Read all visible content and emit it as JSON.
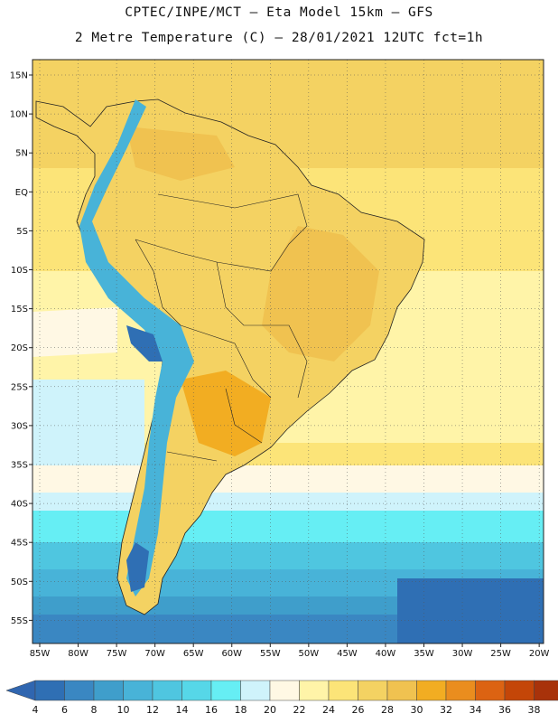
{
  "header": {
    "title_line1": "CPTEC/INPE/MCT –  Eta Model 15km – GFS",
    "title_line2": "2 Metre Temperature (C) – 28/01/2021 12UTC fct=1h"
  },
  "axes": {
    "lat_labels": [
      "15N",
      "10N",
      "5N",
      "EQ",
      "5S",
      "10S",
      "15S",
      "20S",
      "25S",
      "30S",
      "35S",
      "40S",
      "45S",
      "50S",
      "55S"
    ],
    "lon_labels": [
      "85W",
      "80W",
      "75W",
      "70W",
      "65W",
      "60W",
      "55W",
      "50W",
      "45W",
      "40W",
      "35W",
      "30W",
      "25W",
      "20W"
    ],
    "grid": true
  },
  "colorbar": {
    "labels": [
      "4",
      "6",
      "8",
      "10",
      "12",
      "14",
      "16",
      "18",
      "20",
      "22",
      "24",
      "26",
      "28",
      "30",
      "32",
      "34",
      "36",
      "38"
    ],
    "colors": [
      "#2f6fb4",
      "#3a87c2",
      "#3f9ecb",
      "#48b3d8",
      "#4fc6e0",
      "#56d7e8",
      "#66eef4",
      "#cff3fb",
      "#fff8e4",
      "#fff4a8",
      "#fce478",
      "#f4d262",
      "#f0c250",
      "#f2ad22",
      "#ea8d1e",
      "#dc6312",
      "#c44608",
      "#a8320a"
    ],
    "left_arrow_color": "#3066b0",
    "right_arrow_color": "#a8320a"
  },
  "colors": {
    "ocean_tropical": "#fce478",
    "ocean_subtropical": "#fff4a8",
    "ocean_mid": "#fff8e4",
    "ocean_cold": "#66eef4",
    "ocean_polar": "#3a87c2",
    "land_warm": "#f4d262",
    "land_hot": "#f0c250",
    "andes": "#48b3d8"
  }
}
